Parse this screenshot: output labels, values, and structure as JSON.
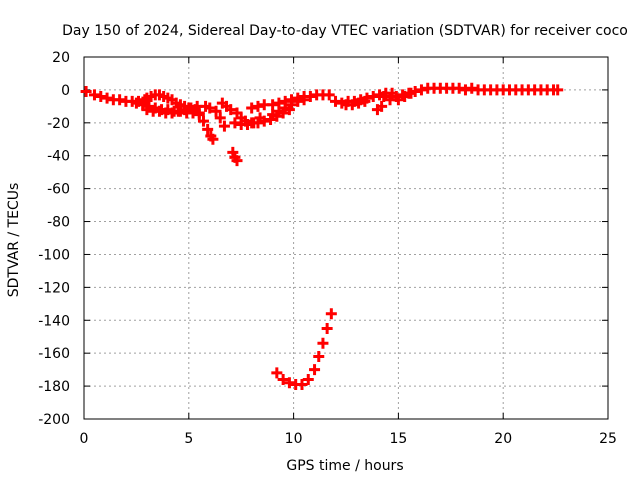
{
  "chart_data": {
    "type": "scatter",
    "title": "Day 150 of 2024, Sidereal Day-to-day VTEC variation (SDTVAR) for receiver coco",
    "xlabel": "GPS time / hours",
    "ylabel": "SDTVAR / TECUs",
    "xlim": [
      0,
      25
    ],
    "ylim": [
      -200,
      20
    ],
    "xticks": [
      0,
      5,
      10,
      15,
      20,
      25
    ],
    "yticks": [
      20,
      0,
      -20,
      -40,
      -60,
      -80,
      -100,
      -120,
      -140,
      -160,
      -180,
      -200
    ],
    "grid": true,
    "marker": "+",
    "color": "#ff0000",
    "series": [
      {
        "name": "SDTVAR",
        "points": [
          [
            0.1,
            -1
          ],
          [
            0.5,
            -3
          ],
          [
            0.8,
            -4
          ],
          [
            1.1,
            -5
          ],
          [
            1.4,
            -6
          ],
          [
            1.7,
            -6
          ],
          [
            2.0,
            -7
          ],
          [
            2.3,
            -7
          ],
          [
            2.6,
            -7
          ],
          [
            2.9,
            -6
          ],
          [
            3.0,
            -5
          ],
          [
            3.2,
            -4
          ],
          [
            3.4,
            -3
          ],
          [
            3.6,
            -3
          ],
          [
            3.8,
            -4
          ],
          [
            4.0,
            -5
          ],
          [
            4.2,
            -6
          ],
          [
            4.4,
            -8
          ],
          [
            4.6,
            -9
          ],
          [
            4.8,
            -10
          ],
          [
            5.0,
            -11
          ],
          [
            2.5,
            -8
          ],
          [
            2.8,
            -9
          ],
          [
            3.1,
            -10
          ],
          [
            3.4,
            -11
          ],
          [
            3.7,
            -12
          ],
          [
            4.0,
            -12
          ],
          [
            4.3,
            -13
          ],
          [
            4.6,
            -13
          ],
          [
            4.9,
            -14
          ],
          [
            5.2,
            -14
          ],
          [
            5.5,
            -14
          ],
          [
            3.0,
            -12
          ],
          [
            3.3,
            -13
          ],
          [
            3.6,
            -13
          ],
          [
            3.9,
            -14
          ],
          [
            4.2,
            -14
          ],
          [
            4.5,
            -13
          ],
          [
            4.8,
            -12
          ],
          [
            5.1,
            -11
          ],
          [
            5.4,
            -10
          ],
          [
            5.8,
            -10
          ],
          [
            6.0,
            -11
          ],
          [
            5.3,
            -12
          ],
          [
            5.5,
            -15
          ],
          [
            5.7,
            -19
          ],
          [
            5.9,
            -24
          ],
          [
            6.05,
            -28
          ],
          [
            6.15,
            -30
          ],
          [
            6.3,
            -13
          ],
          [
            6.5,
            -17
          ],
          [
            6.7,
            -22
          ],
          [
            6.6,
            -8
          ],
          [
            6.8,
            -10
          ],
          [
            7.0,
            -12
          ],
          [
            7.3,
            -14
          ],
          [
            7.5,
            -17
          ],
          [
            7.7,
            -19
          ],
          [
            8.0,
            -20
          ],
          [
            8.3,
            -20
          ],
          [
            8.6,
            -19
          ],
          [
            8.9,
            -18
          ],
          [
            9.2,
            -16
          ],
          [
            9.5,
            -14
          ],
          [
            9.8,
            -12
          ],
          [
            7.1,
            -38
          ],
          [
            7.2,
            -41
          ],
          [
            7.3,
            -43
          ],
          [
            7.2,
            -20
          ],
          [
            7.5,
            -21
          ],
          [
            7.8,
            -21
          ],
          [
            8.1,
            -20
          ],
          [
            8.4,
            -17
          ],
          [
            8.0,
            -11
          ],
          [
            8.3,
            -10
          ],
          [
            8.6,
            -9
          ],
          [
            9.0,
            -9
          ],
          [
            9.3,
            -8
          ],
          [
            9.6,
            -7
          ],
          [
            9.9,
            -6
          ],
          [
            10.2,
            -5
          ],
          [
            10.5,
            -4
          ],
          [
            10.8,
            -4
          ],
          [
            11.1,
            -3
          ],
          [
            11.4,
            -3
          ],
          [
            11.7,
            -3
          ],
          [
            9.0,
            -15
          ],
          [
            9.3,
            -13
          ],
          [
            9.6,
            -11
          ],
          [
            9.9,
            -9
          ],
          [
            10.2,
            -7
          ],
          [
            10.5,
            -6
          ],
          [
            9.2,
            -172
          ],
          [
            9.5,
            -176
          ],
          [
            9.8,
            -178
          ],
          [
            10.1,
            -179
          ],
          [
            10.4,
            -179
          ],
          [
            10.7,
            -176
          ],
          [
            11.0,
            -170
          ],
          [
            11.2,
            -162
          ],
          [
            11.4,
            -154
          ],
          [
            11.6,
            -145
          ],
          [
            11.8,
            -136
          ],
          [
            12.0,
            -7
          ],
          [
            12.3,
            -8
          ],
          [
            12.6,
            -7
          ],
          [
            12.9,
            -7
          ],
          [
            13.2,
            -6
          ],
          [
            13.5,
            -5
          ],
          [
            13.8,
            -4
          ],
          [
            14.1,
            -3
          ],
          [
            14.4,
            -2
          ],
          [
            14.7,
            -2
          ],
          [
            12.5,
            -9
          ],
          [
            12.8,
            -9
          ],
          [
            13.1,
            -8
          ],
          [
            13.4,
            -7
          ],
          [
            14.0,
            -12
          ],
          [
            14.2,
            -10
          ],
          [
            14.3,
            -4
          ],
          [
            14.6,
            -6
          ],
          [
            14.9,
            -4
          ],
          [
            15.2,
            -3
          ],
          [
            15.5,
            -2
          ],
          [
            15.8,
            -1
          ],
          [
            16.1,
            0
          ],
          [
            16.4,
            1
          ],
          [
            16.7,
            1
          ],
          [
            17.0,
            1
          ],
          [
            17.3,
            1
          ],
          [
            17.6,
            1
          ],
          [
            17.9,
            1
          ],
          [
            18.2,
            0
          ],
          [
            15.0,
            -6
          ],
          [
            15.3,
            -4
          ],
          [
            15.6,
            -2
          ],
          [
            18.5,
            1
          ],
          [
            18.8,
            0
          ],
          [
            19.1,
            0
          ],
          [
            19.4,
            0
          ],
          [
            19.7,
            0
          ],
          [
            20.0,
            0
          ],
          [
            20.3,
            0
          ],
          [
            20.6,
            0
          ],
          [
            20.9,
            0
          ],
          [
            21.2,
            0
          ],
          [
            21.5,
            0
          ],
          [
            21.8,
            0
          ],
          [
            22.1,
            0
          ],
          [
            22.4,
            0
          ],
          [
            22.6,
            0
          ]
        ]
      }
    ]
  }
}
